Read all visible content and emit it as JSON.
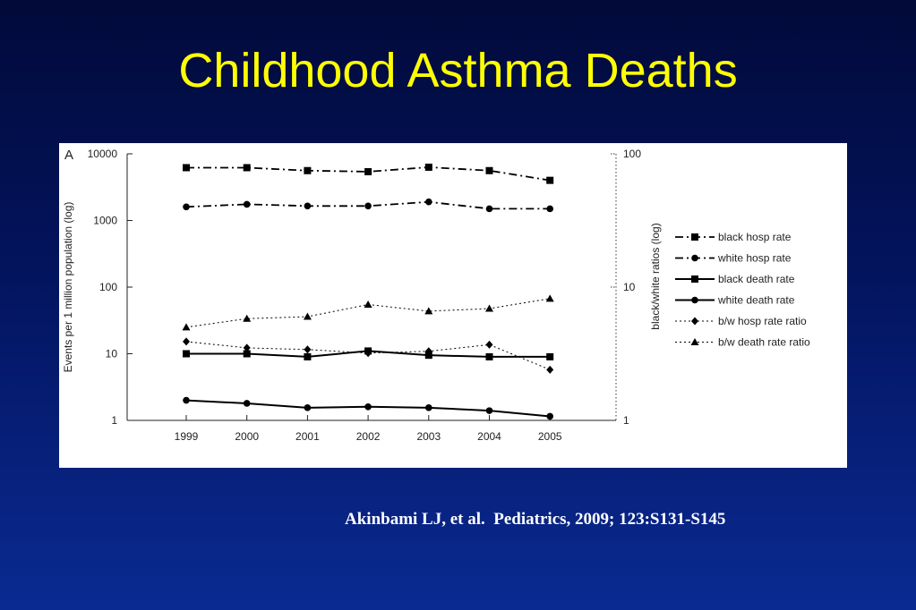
{
  "slide": {
    "title": "Childhood Asthma Deaths",
    "citation": "Akinbami LJ, et al.  Pediatrics, 2009; 123:S131-S145"
  },
  "colors": {
    "background": "#03145e",
    "title": "#ffff00",
    "citation": "#ffffff",
    "panel": "#ffffff"
  },
  "chart_data": {
    "type": "line",
    "panel_label": "A",
    "title": "",
    "ylabel": "Events per 1 million population (log)",
    "y2label": "black/white ratios (log)",
    "xlabel": "",
    "x": [
      "1999",
      "2000",
      "2001",
      "2002",
      "2003",
      "2004",
      "2005"
    ],
    "y_scale": "log",
    "ylim": [
      1,
      10000
    ],
    "y_ticks": [
      "1",
      "10",
      "100",
      "1000",
      "10000"
    ],
    "y2_scale": "log",
    "y2lim": [
      1,
      100
    ],
    "y2_ticks": [
      "1",
      "10",
      "100"
    ],
    "grid": false,
    "legend_position": "right",
    "series": [
      {
        "name": "black hosp rate",
        "axis": "left",
        "marker": "square",
        "line": "dashdot",
        "values": [
          6200,
          6200,
          5600,
          5400,
          6300,
          5600,
          4000
        ]
      },
      {
        "name": "white hosp rate",
        "axis": "left",
        "marker": "circle",
        "line": "dashdot",
        "values": [
          1600,
          1750,
          1650,
          1650,
          1900,
          1500,
          1500
        ]
      },
      {
        "name": "black death rate",
        "axis": "left",
        "marker": "square",
        "line": "solid",
        "values": [
          10,
          10,
          9,
          11,
          9.5,
          9,
          9
        ]
      },
      {
        "name": "white death rate",
        "axis": "left",
        "marker": "circle",
        "line": "solid",
        "values": [
          2,
          1.8,
          1.55,
          1.6,
          1.55,
          1.4,
          1.15
        ]
      },
      {
        "name": "b/w hosp rate ratio",
        "axis": "right",
        "marker": "diamond",
        "line": "dotted",
        "values": [
          3.9,
          3.5,
          3.4,
          3.2,
          3.3,
          3.7,
          2.4
        ]
      },
      {
        "name": "b/w death rate ratio",
        "axis": "right",
        "marker": "triangle",
        "line": "dotted",
        "values": [
          5,
          5.8,
          6,
          7.4,
          6.6,
          6.9,
          8.2
        ]
      }
    ]
  }
}
